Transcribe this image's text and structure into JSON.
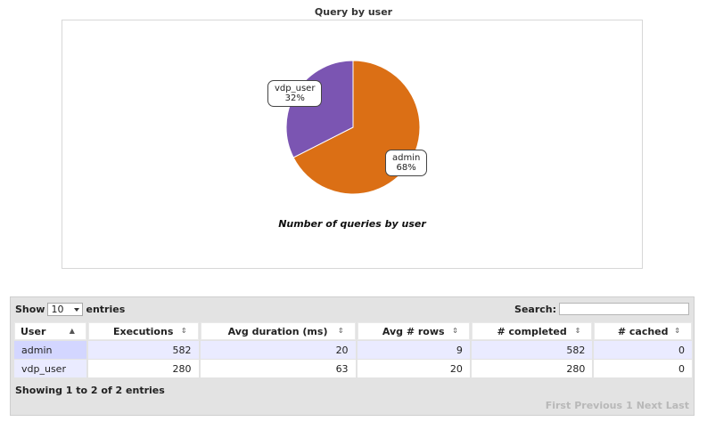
{
  "header": {
    "title": "Query by user"
  },
  "chart_data": {
    "type": "pie",
    "title": "Number of queries by user",
    "slices": [
      {
        "label": "admin",
        "value": 582,
        "percent": "68%",
        "color": "#db6f15"
      },
      {
        "label": "vdp_user",
        "value": 280,
        "percent": "32%",
        "color": "#7b55b2"
      }
    ]
  },
  "table": {
    "length_label_prefix": "Show",
    "length_value": "10",
    "length_label_suffix": "entries",
    "search_label": "Search:",
    "search_value": "",
    "columns": [
      "User",
      "Executions",
      "Avg duration (ms)",
      "Avg # rows",
      "# completed",
      "# cached"
    ],
    "sort_icons": [
      "▲",
      "⇕",
      "⇕",
      "⇕",
      "⇕",
      "⇕"
    ],
    "rows": [
      [
        "admin",
        "582",
        "20",
        "9",
        "582",
        "0"
      ],
      [
        "vdp_user",
        "280",
        "63",
        "20",
        "280",
        "0"
      ]
    ],
    "info": "Showing 1 to 2 of 2 entries",
    "pagination": [
      "First",
      "Previous",
      "1",
      "Next",
      "Last"
    ]
  }
}
